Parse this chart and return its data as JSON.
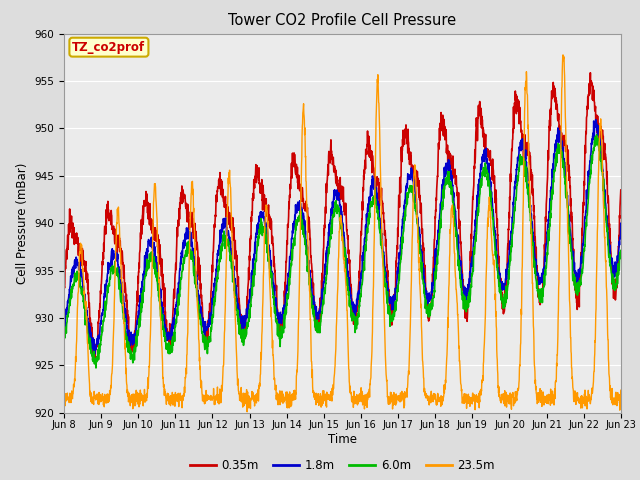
{
  "title": "Tower CO2 Profile Cell Pressure",
  "xlabel": "Time",
  "ylabel": "Cell Pressure (mBar)",
  "ylim": [
    920,
    960
  ],
  "yticks": [
    920,
    925,
    930,
    935,
    940,
    945,
    950,
    955,
    960
  ],
  "fig_facecolor": "#dddddd",
  "plot_facecolor": "#ebebeb",
  "legend_label": "TZ_co2prof",
  "legend_box_facecolor": "#ffffcc",
  "legend_box_edgecolor": "#ccaa00",
  "series": [
    {
      "label": "0.35m",
      "color": "#cc0000",
      "lw": 1.2
    },
    {
      "label": "1.8m",
      "color": "#0000cc",
      "lw": 1.2
    },
    {
      "label": "6.0m",
      "color": "#00bb00",
      "lw": 1.2
    },
    {
      "label": "23.5m",
      "color": "#ff9900",
      "lw": 1.0
    }
  ],
  "xtick_labels": [
    "Jun 8",
    "Jun 9",
    "Jun 10",
    "Jun 11",
    "Jun 12",
    "Jun 13",
    "Jun 14",
    "Jun 15",
    "Jun 16",
    "Jun 17",
    "Jun 18",
    "Jun 19",
    "Jun 20",
    "Jun 21",
    "Jun 22",
    "Jun 23"
  ],
  "n_days": 15,
  "pts_per_day": 144
}
